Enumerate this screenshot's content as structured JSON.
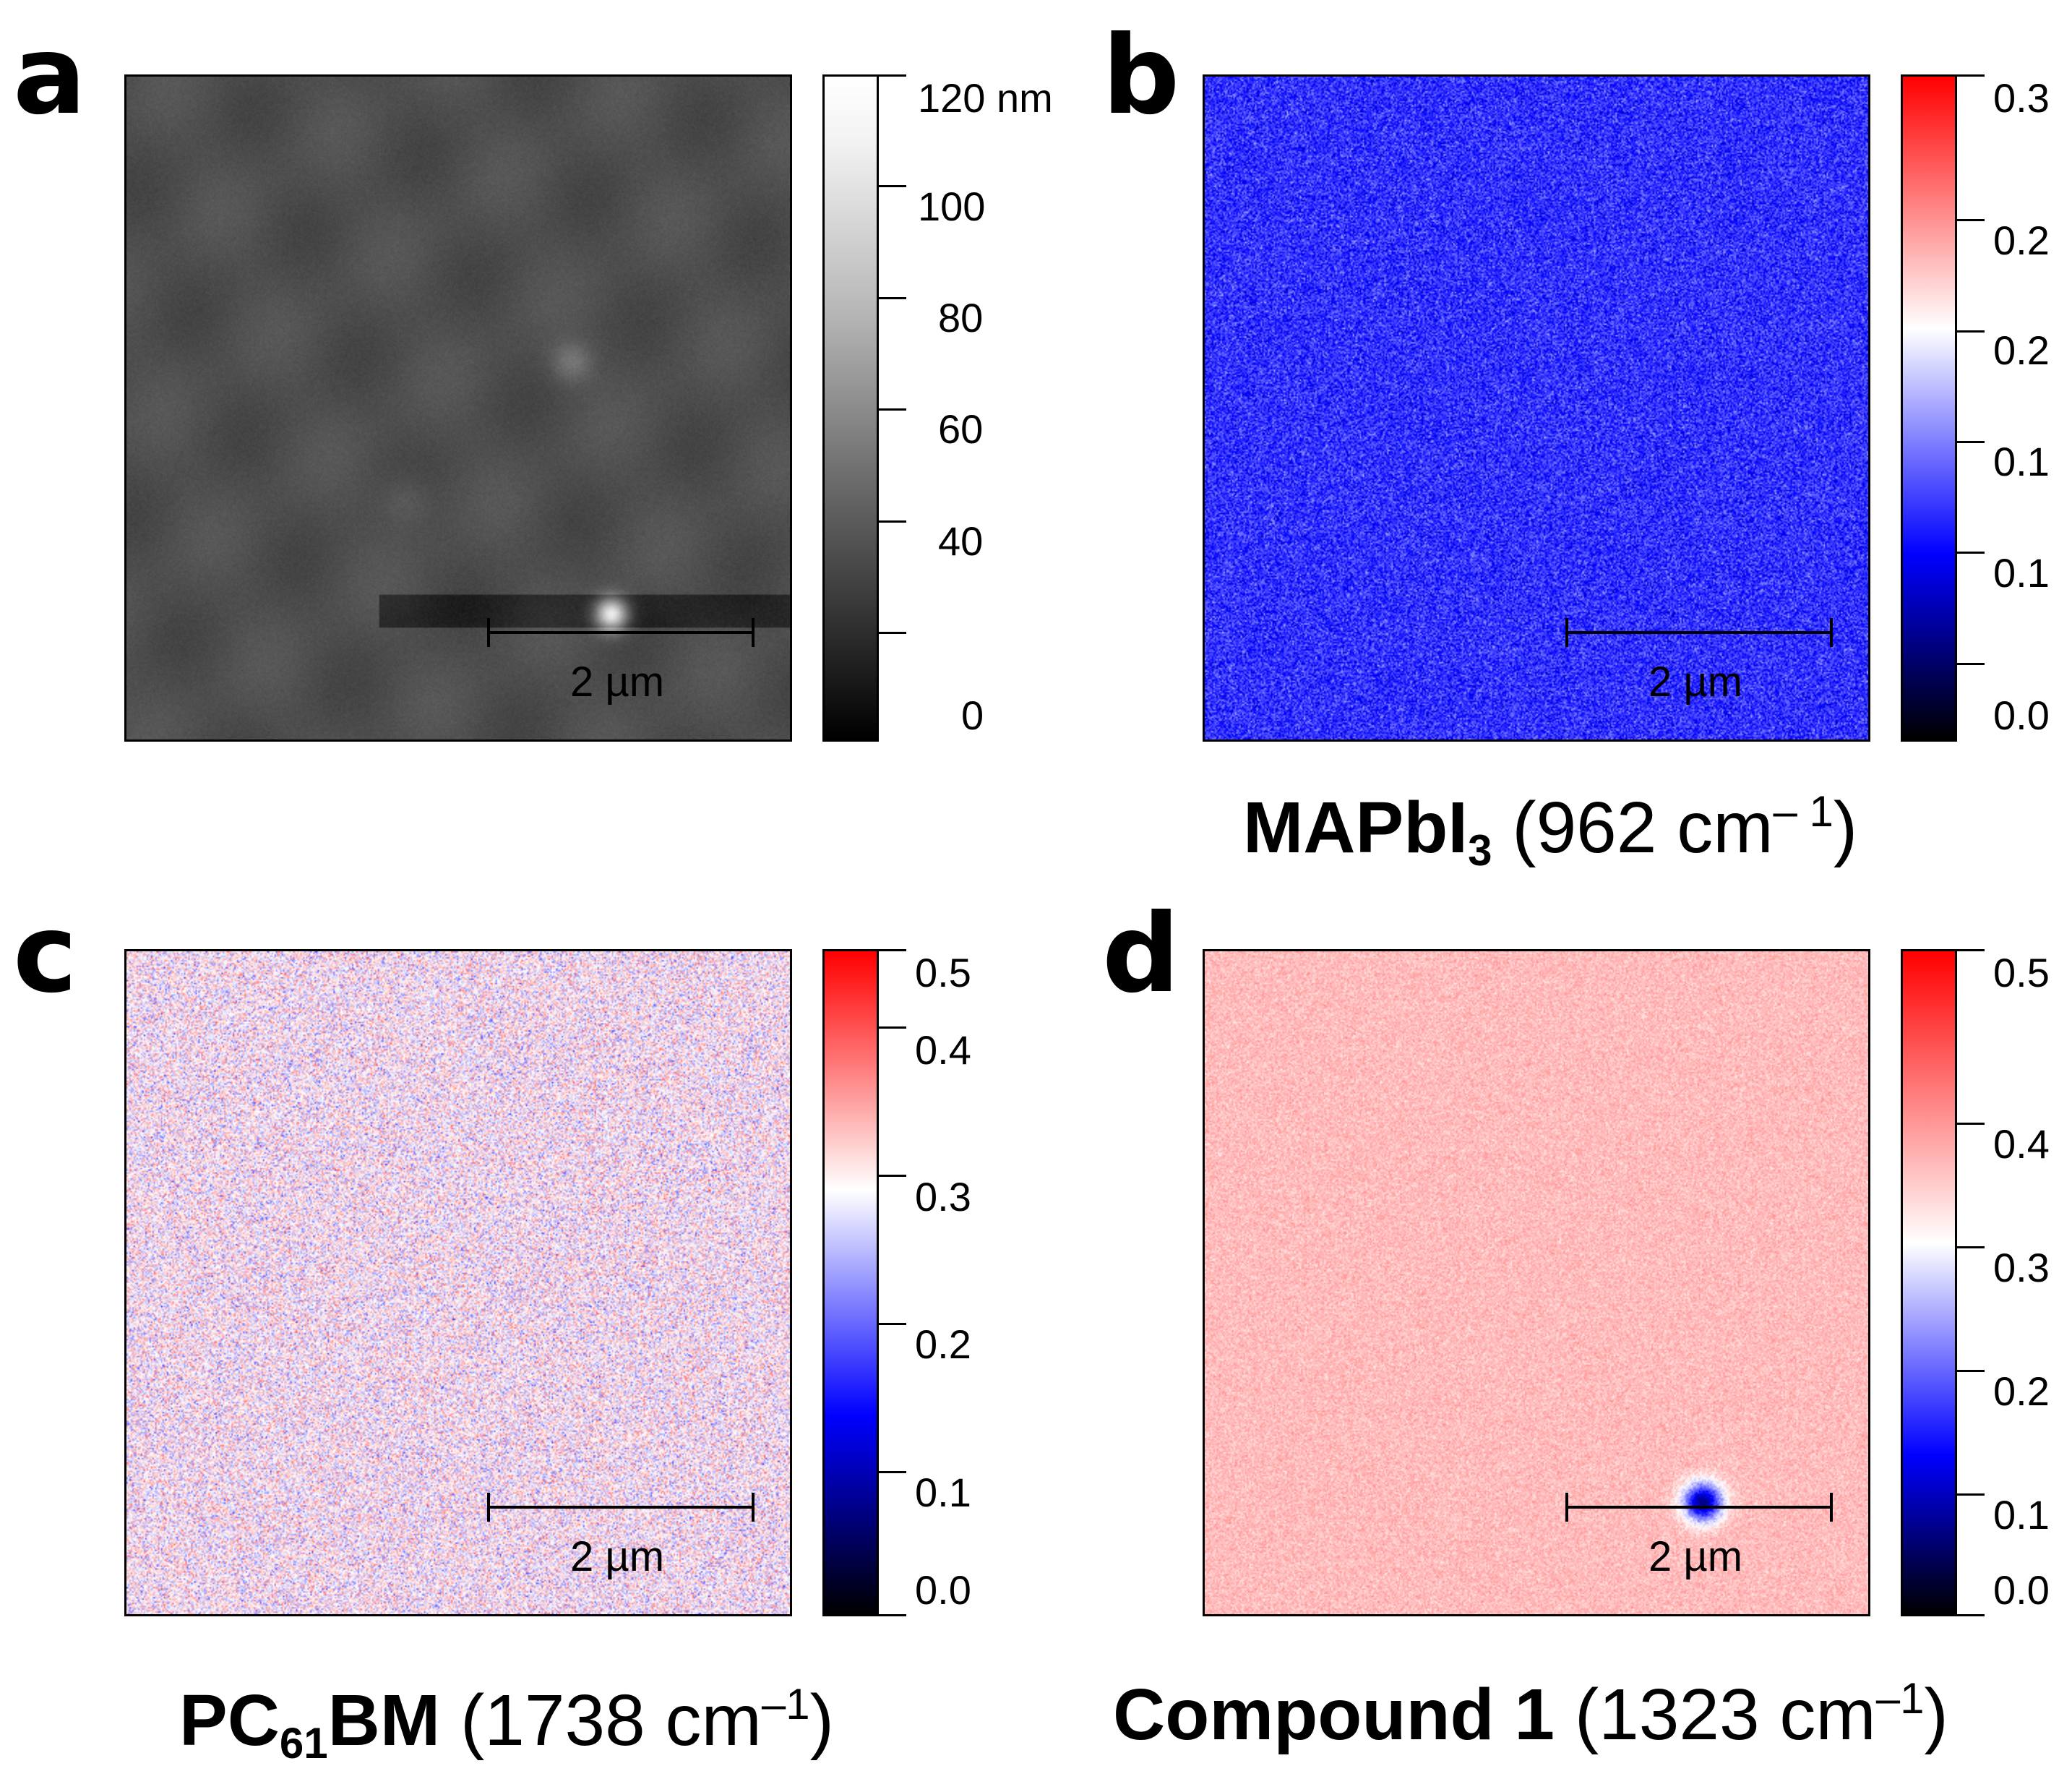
{
  "panels": [
    {
      "letter": "a",
      "colormap": "gray",
      "colorbar_ticks": [
        "120 nm",
        "100",
        "80",
        "60",
        "40",
        "0"
      ],
      "scale_bar": "2 µm"
    },
    {
      "letter": "b",
      "colormap": "seismic",
      "colorbar_ticks": [
        "0.3",
        "0.2",
        "0.2",
        "0.1",
        "0.1",
        "0.0"
      ],
      "scale_bar": "2 µm",
      "caption": {
        "name": "MAPbI",
        "sub": "3",
        "wavenumber": "(962 cm",
        "sup": "– 1",
        "close": ")"
      }
    },
    {
      "letter": "c",
      "colormap": "seismic",
      "colorbar_ticks": [
        "0.5",
        "0.4",
        "0.3",
        "0.2",
        "0.1",
        "0.0"
      ],
      "scale_bar": "2 µm",
      "caption": {
        "name": "PC",
        "sub": "61",
        "name2": "BM",
        "wavenumber": "(1738 cm",
        "sup": "–1",
        "close": ")"
      }
    },
    {
      "letter": "d",
      "colormap": "seismic",
      "colorbar_ticks": [
        "0.5",
        "0.4",
        "0.3",
        "0.2",
        "0.1",
        "0.0"
      ],
      "scale_bar": "2 µm",
      "caption": {
        "name": "Compound 1",
        "wavenumber": "(1323 cm",
        "sup": "–1",
        "close": ")"
      }
    }
  ],
  "colors": {
    "red": "#ff0000",
    "white": "#ffffff",
    "blue": "#0000ff",
    "black": "#000000"
  }
}
